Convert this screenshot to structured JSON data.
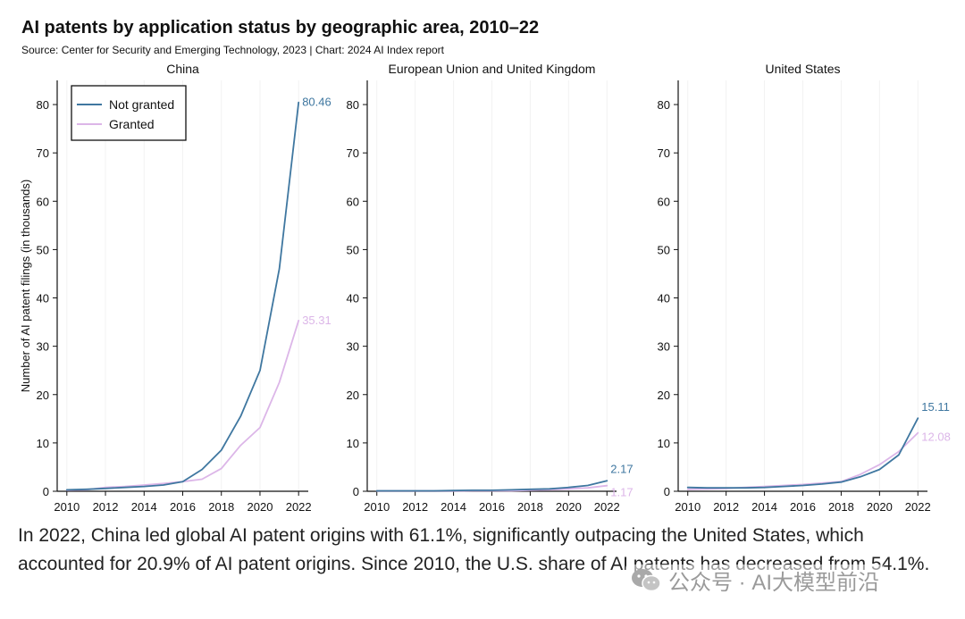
{
  "header": {
    "title": "AI patents by application status by geographic area, 2010–22",
    "source": "Source: Center for Security and Emerging Technology, 2023 | Chart: 2024 AI Index report"
  },
  "caption": "In 2022, China led global AI patent origins with 61.1%, significantly outpacing the United States, which accounted for 20.9% of AI patent origins. Since 2010, the U.S. share of AI patents has decreased from 54.1%.",
  "watermark": {
    "text": "公众号 · AI大模型前沿",
    "icon": "wechat-icon"
  },
  "colors": {
    "not_granted": "#3f77a0",
    "granted": "#dcb6e8",
    "axis": "#111111",
    "grid": "#f2f2f2"
  },
  "chart_data": {
    "type": "line",
    "ylabel": "Number of AI patent filings (in thousands)",
    "ylim": [
      0,
      85
    ],
    "yticks": [
      0,
      10,
      20,
      30,
      40,
      50,
      60,
      70,
      80
    ],
    "xlim": [
      2009.5,
      2022.5
    ],
    "xticks": [
      2010,
      2012,
      2014,
      2016,
      2018,
      2020,
      2022
    ],
    "legend": {
      "placement": "top-left",
      "entries": [
        "Not granted",
        "Granted"
      ]
    },
    "grid": false,
    "x": [
      2010,
      2011,
      2012,
      2013,
      2014,
      2015,
      2016,
      2017,
      2018,
      2019,
      2020,
      2021,
      2022
    ],
    "panels": [
      {
        "name": "China",
        "series": [
          {
            "name": "Not granted",
            "values": [
              0.3,
              0.4,
              0.6,
              0.8,
              1.0,
              1.3,
              2.0,
              4.5,
              8.5,
              15.5,
              25.0,
              46.0,
              80.46
            ],
            "end_label": "80.46"
          },
          {
            "name": "Granted",
            "values": [
              0.2,
              0.3,
              0.8,
              1.0,
              1.3,
              1.6,
              2.0,
              2.5,
              4.7,
              9.5,
              13.2,
              22.5,
              35.31
            ],
            "end_label": "35.31"
          }
        ]
      },
      {
        "name": "European Union and United Kingdom",
        "series": [
          {
            "name": "Not granted",
            "values": [
              0.1,
              0.1,
              0.1,
              0.1,
              0.15,
              0.2,
              0.2,
              0.3,
              0.4,
              0.5,
              0.8,
              1.2,
              2.17
            ],
            "end_label": "2.17"
          },
          {
            "name": "Granted",
            "values": [
              0.05,
              0.05,
              0.05,
              0.05,
              0.05,
              0.1,
              0.1,
              0.1,
              0.2,
              0.3,
              0.5,
              0.7,
              1.17
            ],
            "end_label": "1.17"
          }
        ]
      },
      {
        "name": "United States",
        "series": [
          {
            "name": "Not granted",
            "values": [
              0.8,
              0.7,
              0.7,
              0.7,
              0.8,
              1.0,
              1.2,
              1.5,
              1.9,
              3.0,
              4.5,
              7.5,
              15.11
            ],
            "end_label": "15.11"
          },
          {
            "name": "Granted",
            "values": [
              0.4,
              0.5,
              0.6,
              0.8,
              1.0,
              1.2,
              1.4,
              1.7,
              2.0,
              3.5,
              5.5,
              8.2,
              12.08
            ],
            "end_label": "12.08"
          }
        ]
      }
    ]
  }
}
